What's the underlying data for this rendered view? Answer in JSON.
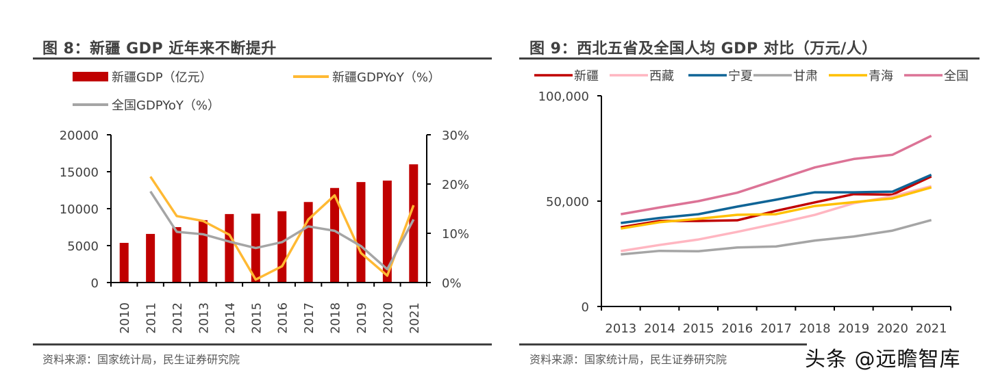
{
  "left_panel": {
    "title": "图 8：新疆 GDP 近年来不断提升",
    "source": "资料来源：国家统计局，民生证券研究院"
  },
  "right_panel": {
    "title": "图 9：西北五省及全国人均 GDP 对比（万元/人）",
    "source": "资料来源：国家统计局，民生证券研究院"
  },
  "watermark": "头条 @远瞻智库",
  "chart_data": [
    {
      "type": "bar",
      "title": "图 8：新疆 GDP 近年来不断提升",
      "categories": [
        "2010",
        "2011",
        "2012",
        "2013",
        "2014",
        "2015",
        "2016",
        "2017",
        "2018",
        "2019",
        "2020",
        "2021"
      ],
      "y_left": {
        "ylim": [
          0,
          20000
        ],
        "ticks": [
          "0",
          "5000",
          "10000",
          "15000",
          "20000"
        ],
        "tick_values": [
          0,
          5000,
          10000,
          15000,
          20000
        ]
      },
      "y_right": {
        "ylim": [
          0,
          30
        ],
        "ticks": [
          "0%",
          "10%",
          "20%",
          "30%"
        ],
        "tick_values": [
          0,
          10,
          20,
          30
        ]
      },
      "legend_position": "top",
      "series": [
        {
          "name": "新疆GDP（亿元）",
          "kind": "bar",
          "axis": "left",
          "color": "#C00000",
          "values": [
            5370,
            6580,
            7500,
            8440,
            9270,
            9320,
            9650,
            10900,
            12800,
            13600,
            13800,
            16000
          ]
        },
        {
          "name": "新疆GDPYoY（%）",
          "kind": "line",
          "axis": "right",
          "color": "#FFB933",
          "values": [
            null,
            21.5,
            13.5,
            12.5,
            9.7,
            0.6,
            3.3,
            12.8,
            17.7,
            6.0,
            1.4,
            15.7
          ]
        },
        {
          "name": "全国GDPYoY（%）",
          "kind": "line",
          "axis": "right",
          "color": "#A5A5A5",
          "values": [
            null,
            18.5,
            10.3,
            9.8,
            8.3,
            7.0,
            8.2,
            11.4,
            10.5,
            7.4,
            2.7,
            12.8
          ]
        }
      ]
    },
    {
      "type": "line",
      "title": "图 9：西北五省及全国人均 GDP 对比（万元/人）",
      "categories": [
        "2013",
        "2014",
        "2015",
        "2016",
        "2017",
        "2018",
        "2019",
        "2020",
        "2021"
      ],
      "y": {
        "ylim": [
          0,
          100000
        ],
        "ticks": [
          "0",
          "50,000",
          "100,000"
        ],
        "tick_values": [
          0,
          50000,
          100000
        ]
      },
      "legend_position": "top",
      "series": [
        {
          "name": "新疆",
          "color": "#C00000",
          "values": [
            37600,
            40600,
            40600,
            40900,
            45400,
            49400,
            53300,
            53100,
            61700
          ]
        },
        {
          "name": "西藏",
          "color": "#FFB6C1",
          "values": [
            26300,
            29200,
            31800,
            35400,
            39300,
            43500,
            49000,
            52300,
            57100
          ]
        },
        {
          "name": "宁夏",
          "color": "#0F6496",
          "values": [
            39600,
            42000,
            43800,
            47400,
            50700,
            54200,
            54200,
            54500,
            62500
          ]
        },
        {
          "name": "甘肃",
          "color": "#A5A5A5",
          "values": [
            24700,
            26400,
            26200,
            28000,
            28500,
            31300,
            33200,
            36000,
            41000
          ]
        },
        {
          "name": "青海",
          "color": "#FFC000",
          "values": [
            37000,
            40000,
            41600,
            43500,
            43800,
            47700,
            49500,
            51300,
            56500
          ]
        },
        {
          "name": "全国",
          "color": "#DC7396",
          "values": [
            43800,
            47000,
            50000,
            54000,
            60000,
            66000,
            70000,
            72000,
            81000
          ]
        }
      ]
    }
  ]
}
